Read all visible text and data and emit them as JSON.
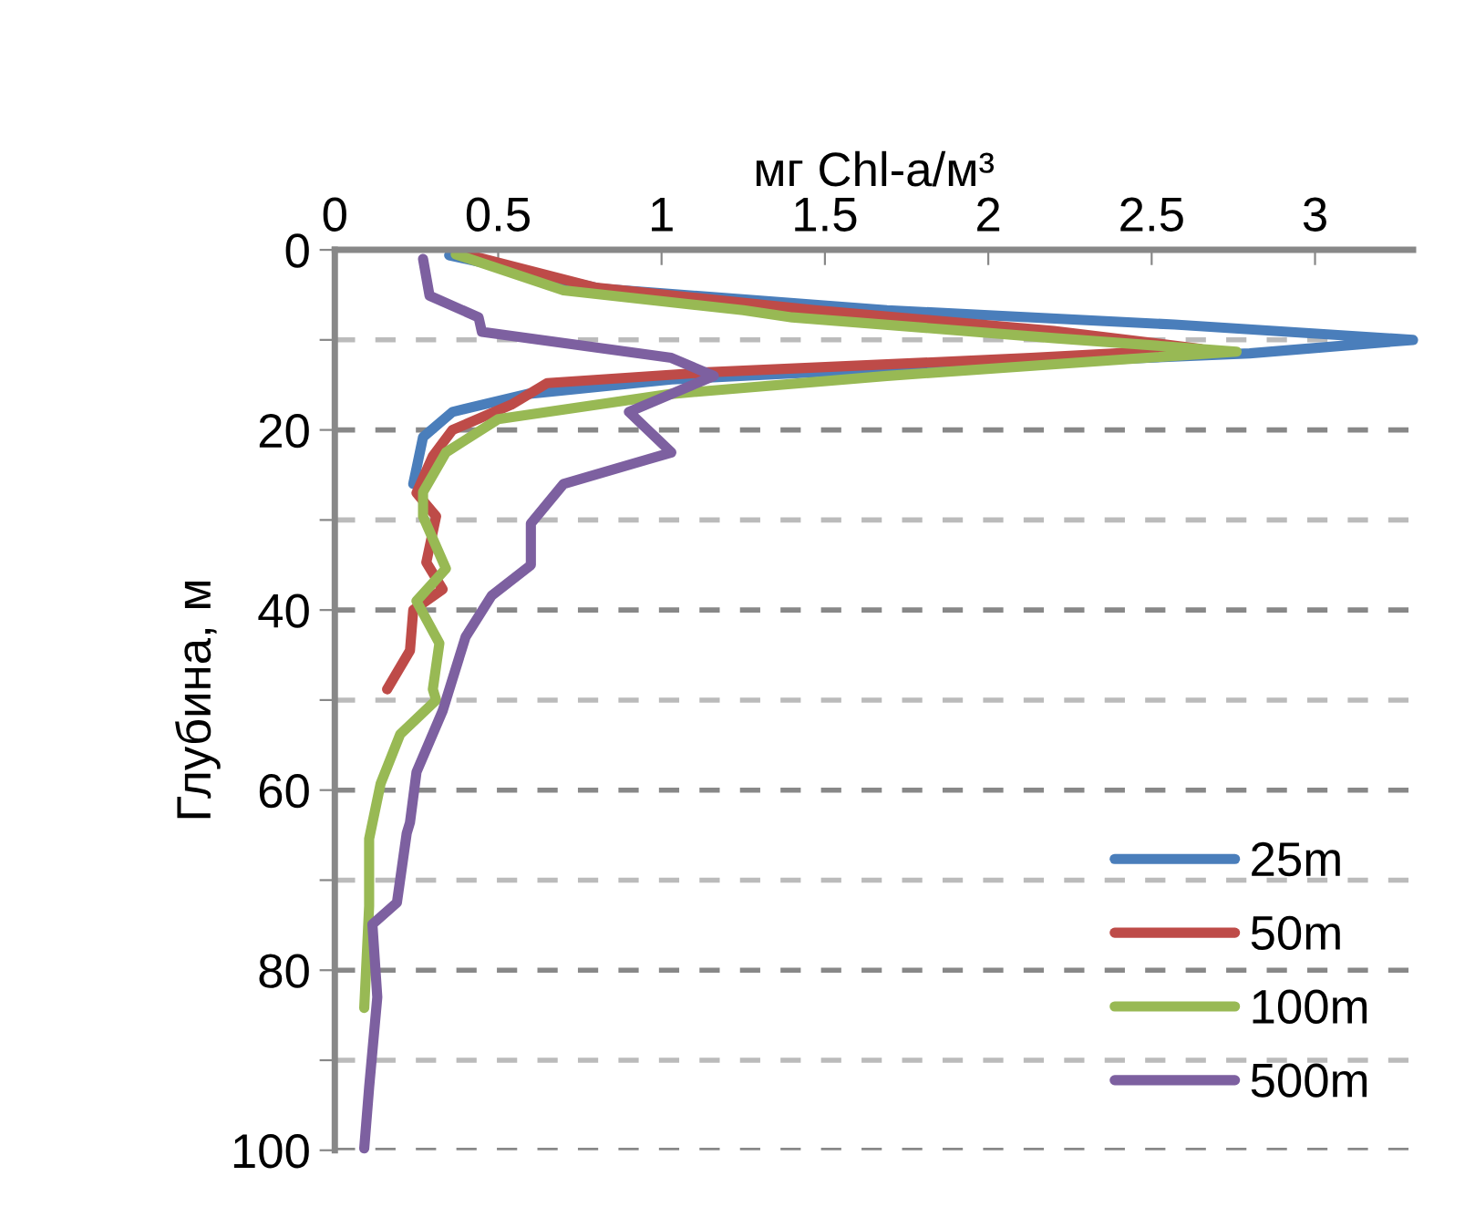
{
  "chart_data": {
    "type": "line",
    "xlabel": "мг Chl-a/м³",
    "ylabel": "Глубина, м",
    "xlim": [
      0,
      3.3
    ],
    "xticks": [
      0,
      0.5,
      1,
      1.5,
      2,
      2.5,
      3
    ],
    "ylim": [
      100,
      0
    ],
    "yticks": [
      0,
      {
        "value": 10,
        "label": null
      },
      20,
      {
        "value": 30,
        "label": null
      },
      40,
      {
        "value": 50,
        "label": null
      },
      60,
      {
        "value": 70,
        "label": null
      },
      80,
      {
        "value": 90,
        "label": null
      },
      100
    ],
    "grid": "y",
    "legend": "bottom right",
    "line_style": "solid",
    "marker": "none",
    "series": [
      {
        "name": "25m",
        "color": "#4a7ebb",
        "x": [
          0.35,
          0.81,
          1.69,
          2.57,
          3.3,
          2.8,
          1.69,
          1.03,
          0.59,
          0.36,
          0.27,
          0.24
        ],
        "values": [
          0.6,
          4.3,
          6.7,
          8.3,
          10,
          11.5,
          13.2,
          14.4,
          16,
          18,
          20.8,
          26
        ]
      },
      {
        "name": "50m",
        "color": "#be4b48",
        "x": [
          0.4,
          0.8,
          1.47,
          2.2,
          2.65,
          2.13,
          1.14,
          0.65,
          0.54,
          0.36,
          0.3,
          0.25,
          0.31,
          0.28,
          0.33,
          0.24,
          0.23,
          0.16
        ],
        "values": [
          0.5,
          4.2,
          6.7,
          9,
          11,
          12,
          13.6,
          14.8,
          17.2,
          20,
          22.9,
          27,
          29.6,
          34.7,
          37.7,
          40,
          44.5,
          48.8
        ]
      },
      {
        "name": "100m",
        "color": "#98b954",
        "x": [
          0.37,
          0.7,
          1.25,
          1.4,
          2.2,
          2.76,
          1.69,
          1.03,
          0.5,
          0.34,
          0.27,
          0.27,
          0.34,
          0.25,
          0.32,
          0.3,
          0.31,
          0.2,
          0.14,
          0.105,
          0.105,
          0.09
        ],
        "values": [
          0.5,
          4.5,
          6.7,
          7.5,
          9.8,
          11.3,
          14,
          16,
          18.8,
          22.5,
          26.9,
          29.6,
          35.4,
          39,
          43.7,
          48.8,
          50,
          53.8,
          59.3,
          65.4,
          72.9,
          84.2
        ]
      },
      {
        "name": "500m",
        "color": "#7d60a0",
        "x": [
          0.27,
          0.29,
          0.44,
          0.45,
          1.03,
          1.16,
          0.9,
          1.03,
          0.7,
          0.6,
          0.6,
          0.48,
          0.4,
          0.33,
          0.25,
          0.23,
          0.22,
          0.19,
          0.115,
          0.13,
          0.105,
          0.09
        ],
        "values": [
          1,
          5.1,
          7.5,
          9.1,
          12,
          14,
          18,
          22.5,
          26,
          30.4,
          35,
          38.4,
          43,
          51.2,
          58,
          63.6,
          64.8,
          72.5,
          74.9,
          83,
          93,
          99.8
        ]
      }
    ]
  }
}
